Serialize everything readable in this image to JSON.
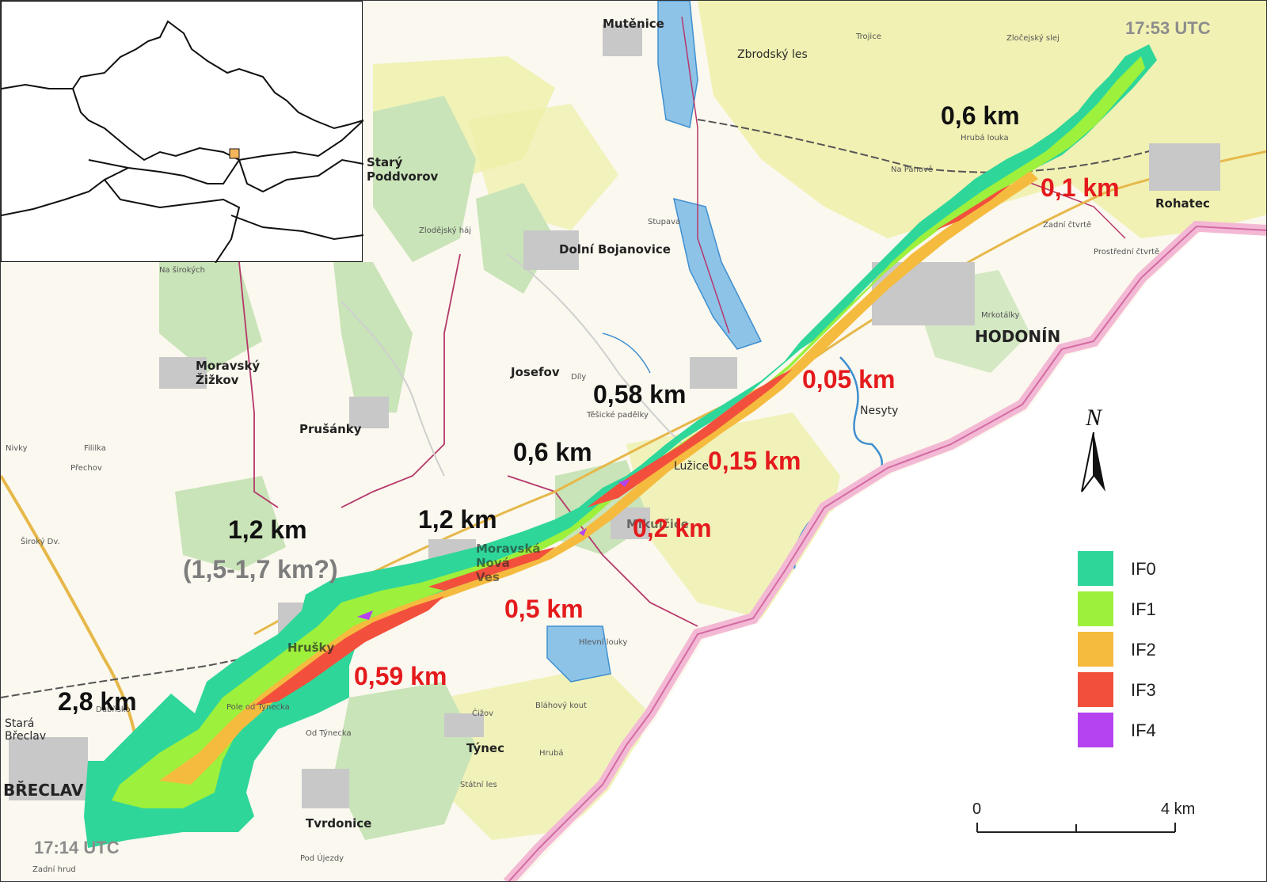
{
  "map": {
    "time_start": "17:14 UTC",
    "time_end": "17:53 UTC"
  },
  "places": {
    "mutenice": "Mutěnice",
    "stary_poddvorov": "Starý Poddvorov",
    "dolni_bojanovice": "Dolní Bojanovice",
    "rohatec": "Rohatec",
    "hodonin": "HODONÍN",
    "moravsky_zizkov": "Moravský Žižkov",
    "prusanky": "Prušánky",
    "josefov": "Josefov",
    "moravska_nova_ves": "Moravská Nová Ves",
    "mikulcice": "Mikulčice",
    "hrusky": "Hrušky",
    "tynec": "Týnec",
    "breclav": "BŘECLAV",
    "tvrdonice": "Tvrdonice",
    "stara_breclav": "Stará Břeclav",
    "luzice": "Lužice",
    "nesyty": "Nesyty",
    "zbrodsky_les": "Zbrodský les",
    "na_panove": "Na Pánově",
    "hruba_louka": "Hrubá louka",
    "mrkotalky": "Mrkotálky",
    "zadni_ctvrte": "Zadní čtvrtě",
    "prostredni_ctvrte": "Prostřední čtvrtě",
    "stupava": "Stupava",
    "fililka": "Fililka",
    "prechov": "Přechov",
    "nivky": "Nivky",
    "siroky_dv": "Široký Dv.",
    "dily": "Díly",
    "tesicke_padelky": "Těšické padělky",
    "zlodejsky_haj": "Zlodějský háj",
    "hlavni_louky": "Hlevní louky",
    "blahovy_kout": "Bláhový kout",
    "ciby": "Čižov",
    "od_tynecka": "Od Týnecka",
    "pole_od_tynecka": "Pole od Týnecka",
    "pod_ujezdy": "Pod Újezdy",
    "statni_les": "Státní les",
    "hruba": "Hrubá",
    "zadni_hrud": "Zadní hrud",
    "dubnsko": "Dubňsko",
    "na_sirokych": "Na širokých",
    "trojice": "Trojice",
    "zlocejsky_slej": "Zločejský slej"
  },
  "tornado_widths": {
    "black": [
      "0,6 km",
      "0,58 km",
      "0,6 km",
      "1,2 km",
      "1,2 km",
      "2,8 km"
    ],
    "red": [
      "0,1 km",
      "0,05 km",
      "0,15 km",
      "0,2 km",
      "0,5 km",
      "0,59 km"
    ],
    "gray": "(1,5-1,7 km?)"
  },
  "legend": {
    "items": [
      {
        "label": "IF0",
        "color": "#2fd69a"
      },
      {
        "label": "IF1",
        "color": "#9df03c"
      },
      {
        "label": "IF2",
        "color": "#f5bb3f"
      },
      {
        "label": "IF3",
        "color": "#f2503c"
      },
      {
        "label": "IF4",
        "color": "#b543f0"
      }
    ]
  },
  "north_arrow": {
    "label": "N"
  },
  "scale_bar": {
    "start": "0",
    "end": "4 km"
  },
  "colors": {
    "border_band": "#f3b9d4",
    "border_line": "#d36aa2",
    "fields": "#fbf8ef",
    "forest": "#c9e4b8",
    "meadow": "#eef0a8",
    "water": "#8ec3e8",
    "boundary": "#b5376b",
    "inset_marker": "#f5b55a"
  }
}
